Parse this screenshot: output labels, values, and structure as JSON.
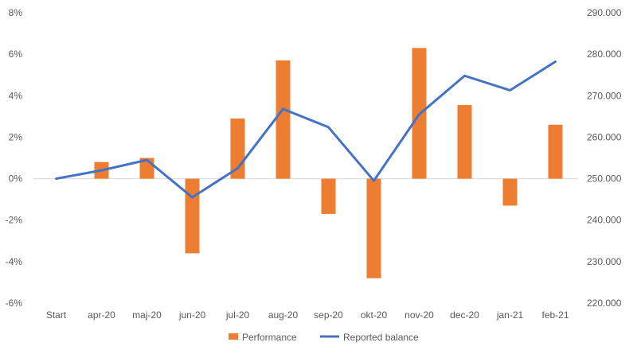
{
  "chart_data": {
    "type": "bar+line",
    "title": "",
    "categories": [
      "Start",
      "apr-20",
      "maj-20",
      "jun-20",
      "jul-20",
      "aug-20",
      "sep-20",
      "okt-20",
      "nov-20",
      "dec-20",
      "jan-21",
      "feb-21"
    ],
    "series": [
      {
        "name": "Performance",
        "type": "bar",
        "axis": "left",
        "color": "#ED7D31",
        "values": [
          0,
          0.8,
          1.0,
          -3.6,
          2.9,
          5.7,
          -1.7,
          -4.8,
          6.3,
          3.55,
          -1.3,
          2.6
        ]
      },
      {
        "name": "Reported balance",
        "type": "line",
        "axis": "right",
        "color": "#4472C4",
        "values": [
          250000,
          252000,
          254500,
          245500,
          252500,
          266800,
          262400,
          249500,
          265500,
          274800,
          271300,
          278200
        ]
      }
    ],
    "y_left": {
      "range": [
        -6,
        8
      ],
      "ticks": [
        8,
        6,
        4,
        2,
        0,
        -2,
        -4,
        -6
      ],
      "tick_labels": [
        "8%",
        "6%",
        "4%",
        "2%",
        "0%",
        "-2%",
        "-4%",
        "-6%"
      ]
    },
    "y_right": {
      "range": [
        220000,
        290000
      ],
      "ticks": [
        290000,
        280000,
        270000,
        260000,
        250000,
        240000,
        230000,
        220000
      ],
      "tick_labels": [
        "290.000",
        "280.000",
        "270.000",
        "260.000",
        "250.000",
        "240.000",
        "230.000",
        "220.000"
      ]
    },
    "legend": {
      "position": "bottom",
      "items": [
        {
          "label": "Performance",
          "color": "#ED7D31"
        },
        {
          "label": "Reported balance",
          "color": "#4472C4"
        }
      ]
    },
    "gridlines": false,
    "zero_line_color": "#D9D9D9"
  }
}
